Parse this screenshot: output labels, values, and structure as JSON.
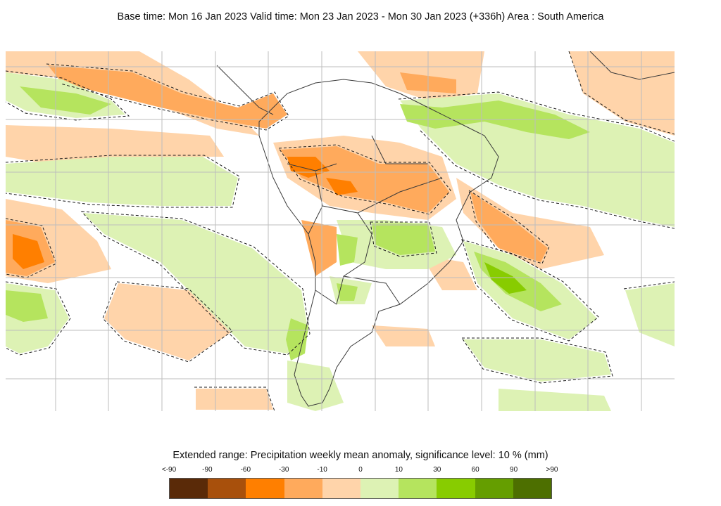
{
  "title": "Base time: Mon 16 Jan 2023 Valid time: Mon 23 Jan 2023 - Mon 30 Jan 2023 (+336h) Area : South America",
  "map": {
    "region": "South America",
    "colors": {
      "land_boundary": "#3a3a3a",
      "graticule": "#bdbdbd",
      "significance_contour": "#1a1a1a",
      "background": "#ffffff"
    }
  },
  "legend": {
    "title": "Extended range: Precipitation weekly mean anomaly, significance level: 10 % (mm)",
    "labels": [
      "<-90",
      "-90",
      "-60",
      "-30",
      "-10",
      "0",
      "10",
      "30",
      "60",
      "90",
      ">90"
    ],
    "colors": [
      "#5a2a08",
      "#a8500c",
      "#ff7f00",
      "#ffaa5c",
      "#ffd4aa",
      "#ddf2b4",
      "#b5e45e",
      "#88cc00",
      "#659e00",
      "#4d6f00"
    ]
  }
}
